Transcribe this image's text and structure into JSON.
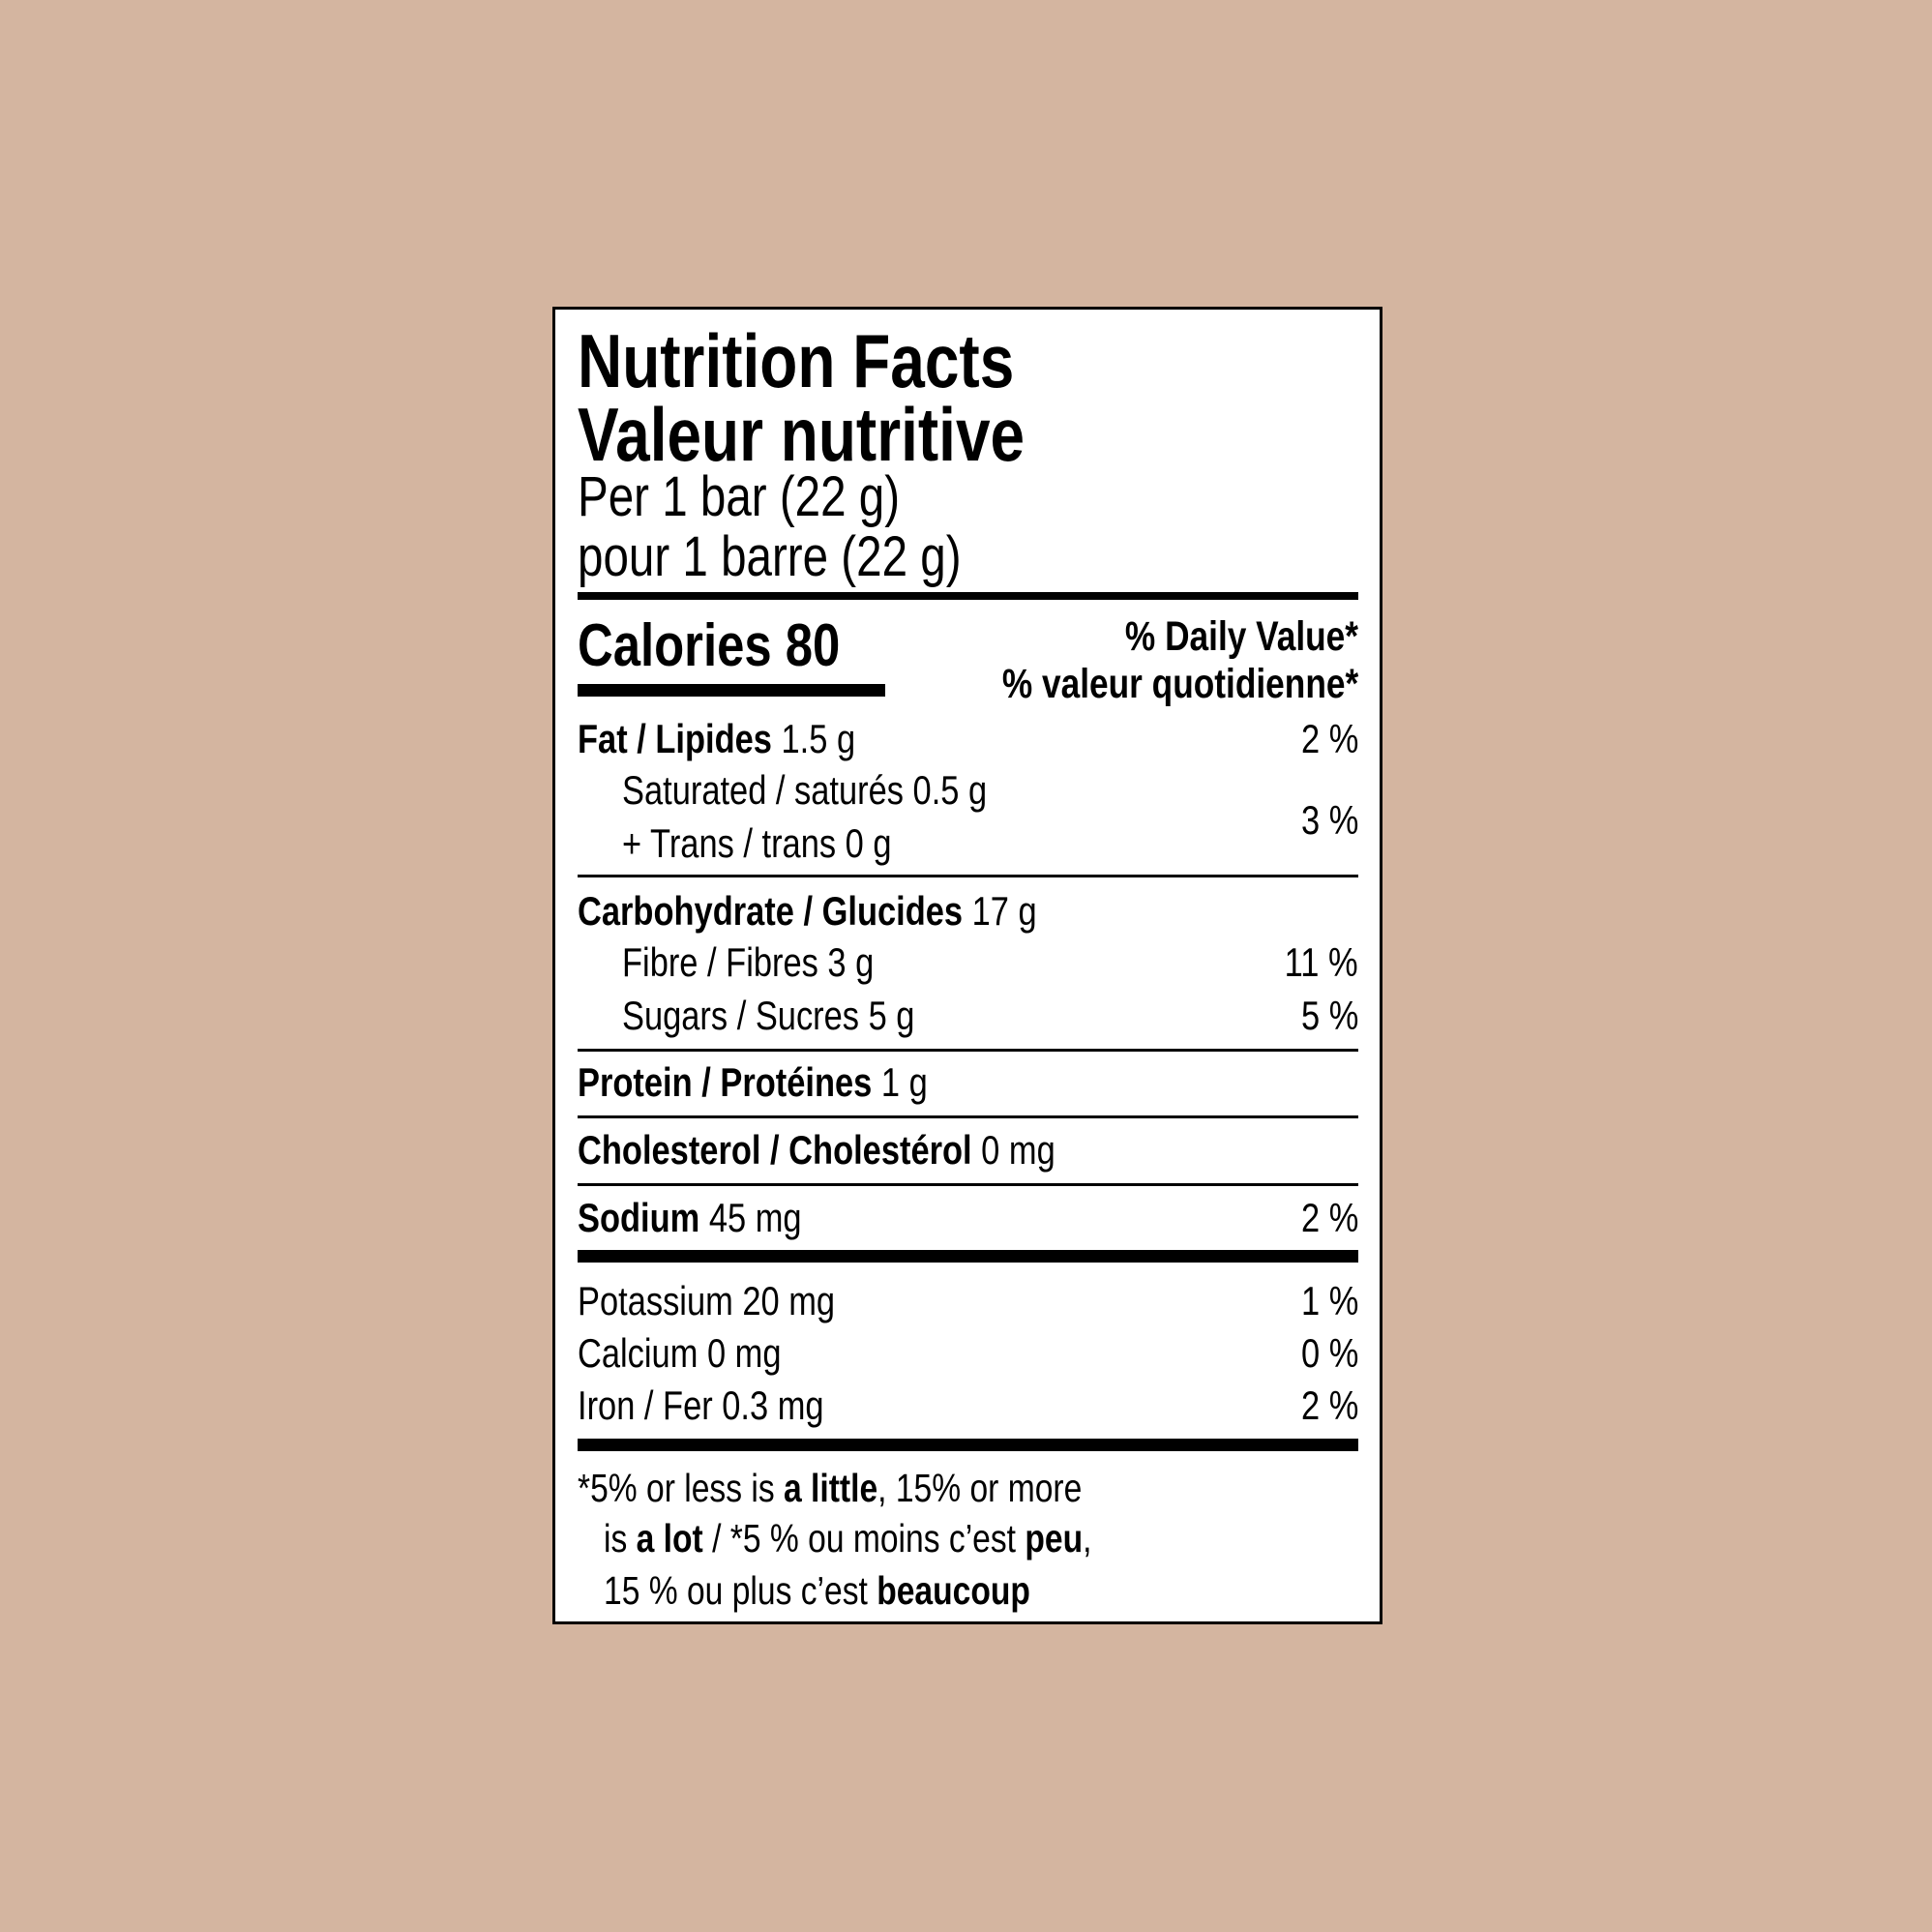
{
  "header": {
    "title_en": "Nutrition Facts",
    "title_fr": "Valeur nutritive",
    "serving_en": "Per 1 bar (22 g)",
    "serving_fr": "pour 1 barre (22 g)"
  },
  "calories": {
    "label": "Calories 80",
    "dv_en": "% Daily Value*",
    "dv_fr": "% valeur quotidienne*"
  },
  "nutrients": {
    "fat": {
      "name": "Fat / Lipides",
      "amount": " 1.5 g",
      "dv": "2 %"
    },
    "saturated": {
      "text": "Saturated / saturés 0.5 g"
    },
    "trans": {
      "text": "+ Trans / trans 0 g"
    },
    "sat_trans_dv": "3 %",
    "carb": {
      "name": "Carbohydrate / Glucides",
      "amount": " 17 g"
    },
    "fibre": {
      "text": "Fibre / Fibres 3 g",
      "dv": "11 %"
    },
    "sugars": {
      "text": "Sugars / Sucres 5 g",
      "dv": "5 %"
    },
    "protein": {
      "name": "Protein / Protéines",
      "amount": " 1 g"
    },
    "cholesterol": {
      "name": "Cholesterol / Cholestérol",
      "amount": " 0 mg"
    },
    "sodium": {
      "name": "Sodium",
      "amount": " 45 mg",
      "dv": "2 %"
    },
    "potassium": {
      "text": "Potassium 20 mg",
      "dv": "1 %"
    },
    "calcium": {
      "text": "Calcium 0 mg",
      "dv": "0 %"
    },
    "iron": {
      "text": "Iron / Fer 0.3 mg",
      "dv": "2 %"
    }
  },
  "footnote": {
    "l1a": "*5% or less is ",
    "l1b": "a little",
    "l1c": ", 15% or more",
    "l2a": "is ",
    "l2b": "a lot",
    "l2c": " / *5 % ou moins c’est ",
    "l2d": "peu",
    "l2e": ",",
    "l3a": "15 % ou plus c’est ",
    "l3b": "beaucoup"
  }
}
